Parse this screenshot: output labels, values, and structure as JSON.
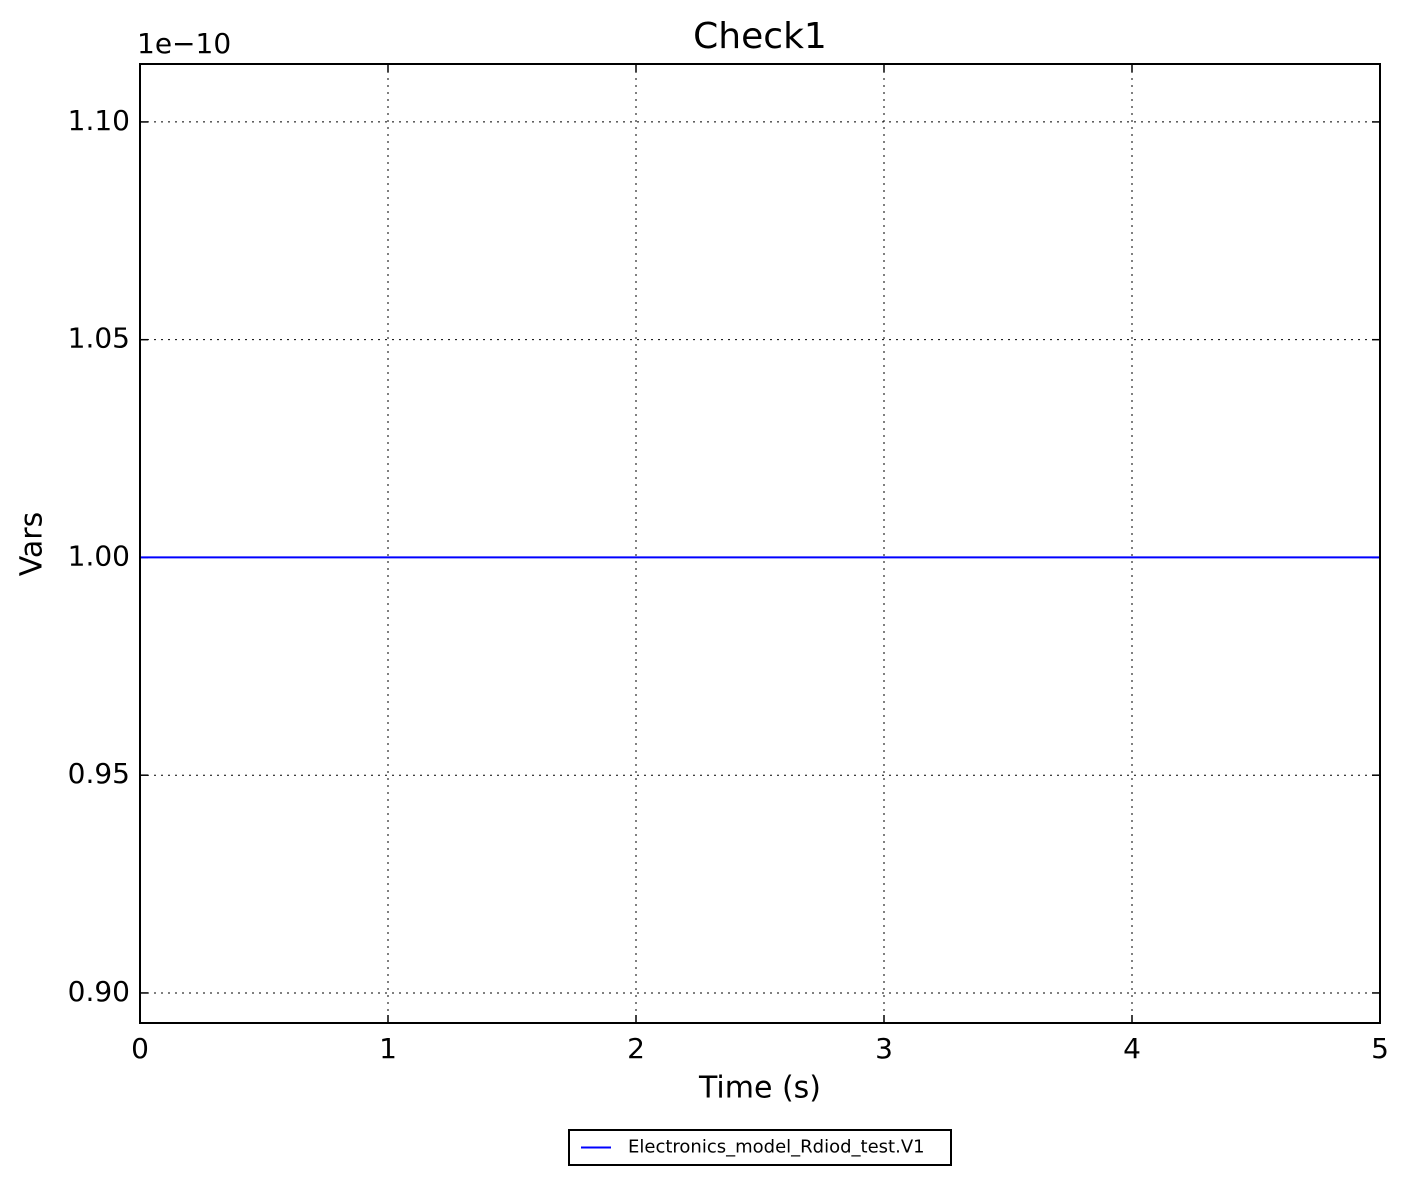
{
  "chart_data": {
    "type": "line",
    "title": "Check1",
    "xlabel": "Time (s)",
    "ylabel": "Vars",
    "y_offset_label": "1e−10",
    "x": [
      0,
      5
    ],
    "series": [
      {
        "name": "Electronics_model_Rdiod_test.V1",
        "color": "#0000ff",
        "values": [
          1e-10,
          1e-10
        ]
      }
    ],
    "xlim": [
      0,
      5
    ],
    "xticks": [
      0,
      1,
      2,
      3,
      4,
      5
    ],
    "ylim": [
      8.931e-11,
      1.1133e-10
    ],
    "yticks": [
      {
        "value": 9e-11,
        "label": "0.90"
      },
      {
        "value": 9.5e-11,
        "label": "0.95"
      },
      {
        "value": 1e-10,
        "label": "1.00"
      },
      {
        "value": 1.05e-10,
        "label": "1.05"
      },
      {
        "value": 1.1e-10,
        "label": "1.10"
      }
    ],
    "grid": true,
    "legend": "lower center outside"
  }
}
